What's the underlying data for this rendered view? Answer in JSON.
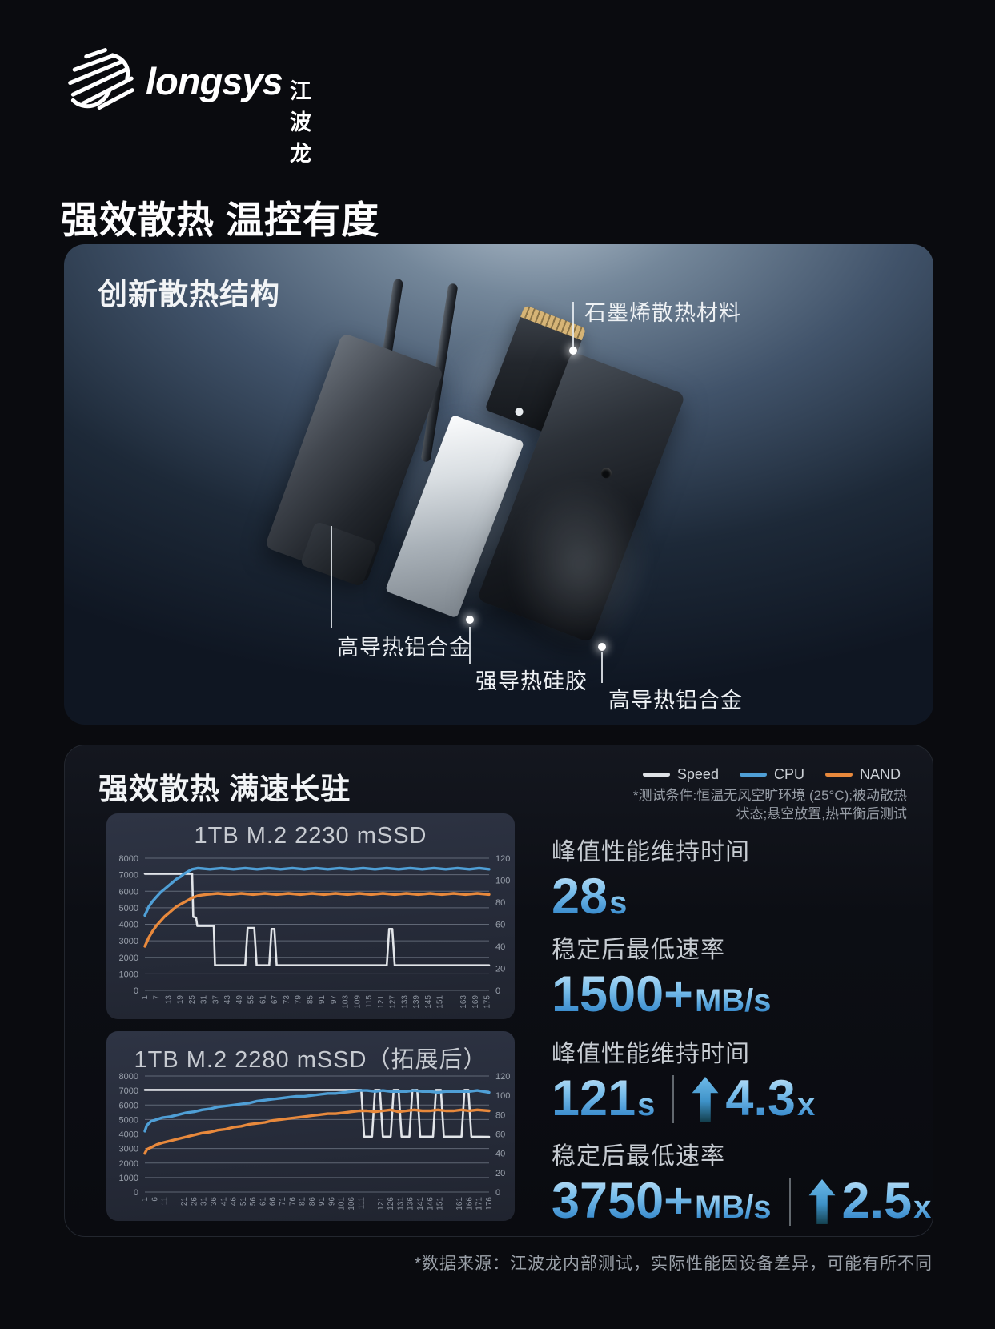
{
  "brand": {
    "logo_text": "longsys",
    "logo_cn": "江波龙"
  },
  "page_title": "强效散热 温控有度",
  "structure_panel": {
    "title": "创新散热结构",
    "callouts": {
      "graphene": "石墨烯散热材料",
      "aluminum_left": "高导热铝合金",
      "silicone": "强导热硅胶",
      "aluminum_right": "高导热铝合金"
    }
  },
  "performance_panel": {
    "title": "强效散热 满速长驻",
    "legend": [
      {
        "label": "Speed",
        "color": "#dfe2e6"
      },
      {
        "label": "CPU",
        "color": "#4f9fd6"
      },
      {
        "label": "NAND",
        "color": "#e8893c"
      }
    ],
    "test_conditions": [
      "*测试条件:恒温无风空旷环境 (25°C);被动散热",
      "状态;悬空放置,热平衡后测试"
    ],
    "stats": [
      {
        "label": "峰值性能维持时间",
        "value": "28",
        "unit": "s"
      },
      {
        "label": "稳定后最低速率",
        "value": "1500+",
        "unit": "MB/s"
      },
      {
        "label": "峰值性能维持时间",
        "value": "121",
        "unit": "s",
        "boost_value": "4.3",
        "boost_unit": "x"
      },
      {
        "label": "稳定后最低速率",
        "value": "3750+",
        "unit": "MB/s",
        "boost_value": "2.5",
        "boost_unit": "x"
      }
    ],
    "accent_color": "#5aa7dd"
  },
  "footnote": "*数据来源：江波龙内部测试，实际性能因设备差异，可能有所不同",
  "chart_data": [
    {
      "type": "line",
      "title": "1TB M.2 2230 mSSD",
      "x_max": 176,
      "y_left_max": 8000,
      "y_left_ticks": [
        0,
        1000,
        2000,
        3000,
        4000,
        5000,
        6000,
        7000,
        8000
      ],
      "y_right_max": 120,
      "y_right_ticks": [
        0,
        20,
        40,
        60,
        80,
        100,
        120
      ],
      "x_ticks": [
        "1",
        "7",
        "13",
        "19",
        "25",
        "31",
        "37",
        "43",
        "49",
        "55",
        "61",
        "67",
        "73",
        "79",
        "85",
        "91",
        "97",
        "103",
        "109",
        "115",
        "121",
        "127",
        "133",
        "139",
        "145",
        "151",
        "163",
        "169",
        "175"
      ],
      "series": [
        {
          "name": "Speed",
          "axis": "left",
          "color": "#e2e5e9",
          "points": [
            [
              1,
              7060
            ],
            [
              24,
              7060
            ],
            [
              25,
              7060
            ],
            [
              25.6,
              4450
            ],
            [
              27,
              4400
            ],
            [
              27.6,
              3900
            ],
            [
              36,
              3900
            ],
            [
              36.6,
              1520
            ],
            [
              52,
              1520
            ],
            [
              53.2,
              3780
            ],
            [
              56.6,
              3780
            ],
            [
              57.8,
              1520
            ],
            [
              64.2,
              1520
            ],
            [
              65.4,
              3720
            ],
            [
              66.8,
              3720
            ],
            [
              68,
              1520
            ],
            [
              124,
              1520
            ],
            [
              125.2,
              3720
            ],
            [
              126.8,
              3720
            ],
            [
              128,
              1520
            ],
            [
              176,
              1520
            ]
          ]
        },
        {
          "name": "CPU",
          "axis": "right",
          "color": "#4f9fd6",
          "points": [
            [
              1,
              68
            ],
            [
              3,
              76
            ],
            [
              5,
              81
            ],
            [
              7,
              85
            ],
            [
              9,
              89
            ],
            [
              11,
              92
            ],
            [
              13,
              95
            ],
            [
              15,
              98
            ],
            [
              17,
              101
            ],
            [
              19,
              103
            ],
            [
              21,
              106
            ],
            [
              23,
              108
            ],
            [
              25,
              110
            ],
            [
              28,
              111
            ],
            [
              34,
              110
            ],
            [
              40,
              111
            ],
            [
              46,
              110
            ],
            [
              52,
              111
            ],
            [
              58,
              110
            ],
            [
              64,
              111
            ],
            [
              70,
              110
            ],
            [
              76,
              111
            ],
            [
              82,
              110
            ],
            [
              88,
              111
            ],
            [
              94,
              110
            ],
            [
              100,
              111
            ],
            [
              106,
              110
            ],
            [
              112,
              111
            ],
            [
              118,
              110
            ],
            [
              124,
              111
            ],
            [
              130,
              110
            ],
            [
              136,
              111
            ],
            [
              142,
              110
            ],
            [
              148,
              111
            ],
            [
              154,
              110
            ],
            [
              160,
              111
            ],
            [
              166,
              110
            ],
            [
              171,
              111
            ],
            [
              176,
              110
            ]
          ]
        },
        {
          "name": "NAND",
          "axis": "right",
          "color": "#e8893c",
          "points": [
            [
              1,
              40
            ],
            [
              3,
              48
            ],
            [
              5,
              54
            ],
            [
              7,
              59
            ],
            [
              9,
              63
            ],
            [
              11,
              67
            ],
            [
              13,
              70
            ],
            [
              15,
              73
            ],
            [
              17,
              76
            ],
            [
              19,
              78
            ],
            [
              21,
              80
            ],
            [
              23,
              82
            ],
            [
              25,
              84
            ],
            [
              28,
              86
            ],
            [
              32,
              87
            ],
            [
              38,
              88
            ],
            [
              44,
              87
            ],
            [
              50,
              88
            ],
            [
              56,
              87
            ],
            [
              62,
              88
            ],
            [
              68,
              87
            ],
            [
              74,
              88
            ],
            [
              80,
              87
            ],
            [
              86,
              88
            ],
            [
              92,
              87
            ],
            [
              98,
              88
            ],
            [
              104,
              87
            ],
            [
              110,
              88
            ],
            [
              116,
              87
            ],
            [
              122,
              88
            ],
            [
              128,
              87
            ],
            [
              134,
              88
            ],
            [
              140,
              87
            ],
            [
              146,
              88
            ],
            [
              152,
              87
            ],
            [
              158,
              88
            ],
            [
              164,
              87
            ],
            [
              170,
              88
            ],
            [
              176,
              87
            ]
          ]
        }
      ]
    },
    {
      "type": "line",
      "title": "1TB M.2 2280 mSSD（拓展后）",
      "x_max": 176,
      "y_left_max": 8000,
      "y_left_ticks": [
        0,
        1000,
        2000,
        3000,
        4000,
        5000,
        6000,
        7000,
        8000
      ],
      "y_right_max": 120,
      "y_right_ticks": [
        0,
        20,
        40,
        60,
        80,
        100,
        120
      ],
      "x_ticks": [
        "1",
        "6",
        "11",
        "21",
        "26",
        "31",
        "36",
        "41",
        "46",
        "51",
        "56",
        "61",
        "66",
        "71",
        "76",
        "81",
        "86",
        "91",
        "96",
        "101",
        "106",
        "111",
        "121",
        "126",
        "131",
        "136",
        "141",
        "146",
        "151",
        "161",
        "166",
        "171",
        "176"
      ],
      "series": [
        {
          "name": "Speed",
          "axis": "left",
          "color": "#e2e5e9",
          "points": [
            [
              1,
              7040
            ],
            [
              111,
              7040
            ],
            [
              112.5,
              3820
            ],
            [
              116.5,
              3820
            ],
            [
              118,
              7040
            ],
            [
              120.5,
              7040
            ],
            [
              122,
              3820
            ],
            [
              126,
              3820
            ],
            [
              127.5,
              7040
            ],
            [
              130,
              7040
            ],
            [
              131.5,
              3820
            ],
            [
              135.5,
              3820
            ],
            [
              137,
              7040
            ],
            [
              139.5,
              7040
            ],
            [
              141,
              3820
            ],
            [
              147.5,
              3820
            ],
            [
              149,
              7040
            ],
            [
              151.5,
              7040
            ],
            [
              153,
              3820
            ],
            [
              162,
              3820
            ],
            [
              163.5,
              7040
            ],
            [
              165.5,
              7040
            ],
            [
              167,
              3820
            ],
            [
              176,
              3800
            ]
          ]
        },
        {
          "name": "CPU",
          "axis": "right",
          "color": "#4f9fd6",
          "points": [
            [
              1,
              63
            ],
            [
              2,
              69
            ],
            [
              4,
              73
            ],
            [
              7,
              75
            ],
            [
              10,
              77
            ],
            [
              14,
              78
            ],
            [
              18,
              80
            ],
            [
              22,
              82
            ],
            [
              26,
              83
            ],
            [
              30,
              85
            ],
            [
              34,
              86
            ],
            [
              38,
              88
            ],
            [
              42,
              89
            ],
            [
              46,
              90
            ],
            [
              50,
              91
            ],
            [
              54,
              92
            ],
            [
              58,
              94
            ],
            [
              62,
              95
            ],
            [
              66,
              96
            ],
            [
              70,
              97
            ],
            [
              74,
              98
            ],
            [
              78,
              99
            ],
            [
              82,
              99
            ],
            [
              86,
              100
            ],
            [
              90,
              101
            ],
            [
              94,
              102
            ],
            [
              98,
              102
            ],
            [
              102,
              103
            ],
            [
              106,
              104
            ],
            [
              110,
              105
            ],
            [
              114,
              105
            ],
            [
              118,
              104
            ],
            [
              122,
              105
            ],
            [
              126,
              104
            ],
            [
              130,
              104
            ],
            [
              134,
              104
            ],
            [
              138,
              105
            ],
            [
              142,
              104
            ],
            [
              146,
              104
            ],
            [
              150,
              103
            ],
            [
              154,
              104
            ],
            [
              158,
              104
            ],
            [
              162,
              104
            ],
            [
              166,
              104
            ],
            [
              170,
              105
            ],
            [
              173,
              104
            ],
            [
              176,
              103
            ]
          ]
        },
        {
          "name": "NAND",
          "axis": "right",
          "color": "#e8893c",
          "points": [
            [
              1,
              40
            ],
            [
              2,
              44
            ],
            [
              4,
              46
            ],
            [
              7,
              49
            ],
            [
              10,
              51
            ],
            [
              14,
              53
            ],
            [
              18,
              55
            ],
            [
              22,
              57
            ],
            [
              26,
              59
            ],
            [
              30,
              61
            ],
            [
              34,
              62
            ],
            [
              38,
              64
            ],
            [
              42,
              65
            ],
            [
              46,
              67
            ],
            [
              50,
              68
            ],
            [
              54,
              70
            ],
            [
              58,
              71
            ],
            [
              62,
              72
            ],
            [
              66,
              74
            ],
            [
              70,
              75
            ],
            [
              74,
              76
            ],
            [
              78,
              77
            ],
            [
              82,
              78
            ],
            [
              86,
              79
            ],
            [
              90,
              80
            ],
            [
              94,
              81
            ],
            [
              98,
              81
            ],
            [
              102,
              82
            ],
            [
              106,
              83
            ],
            [
              110,
              84
            ],
            [
              114,
              84
            ],
            [
              118,
              83
            ],
            [
              122,
              84
            ],
            [
              126,
              85
            ],
            [
              130,
              83
            ],
            [
              134,
              84
            ],
            [
              138,
              85
            ],
            [
              142,
              84
            ],
            [
              146,
              84
            ],
            [
              150,
              85
            ],
            [
              154,
              84
            ],
            [
              158,
              84
            ],
            [
              162,
              85
            ],
            [
              166,
              84
            ],
            [
              170,
              85
            ],
            [
              176,
              84
            ]
          ]
        }
      ]
    }
  ]
}
